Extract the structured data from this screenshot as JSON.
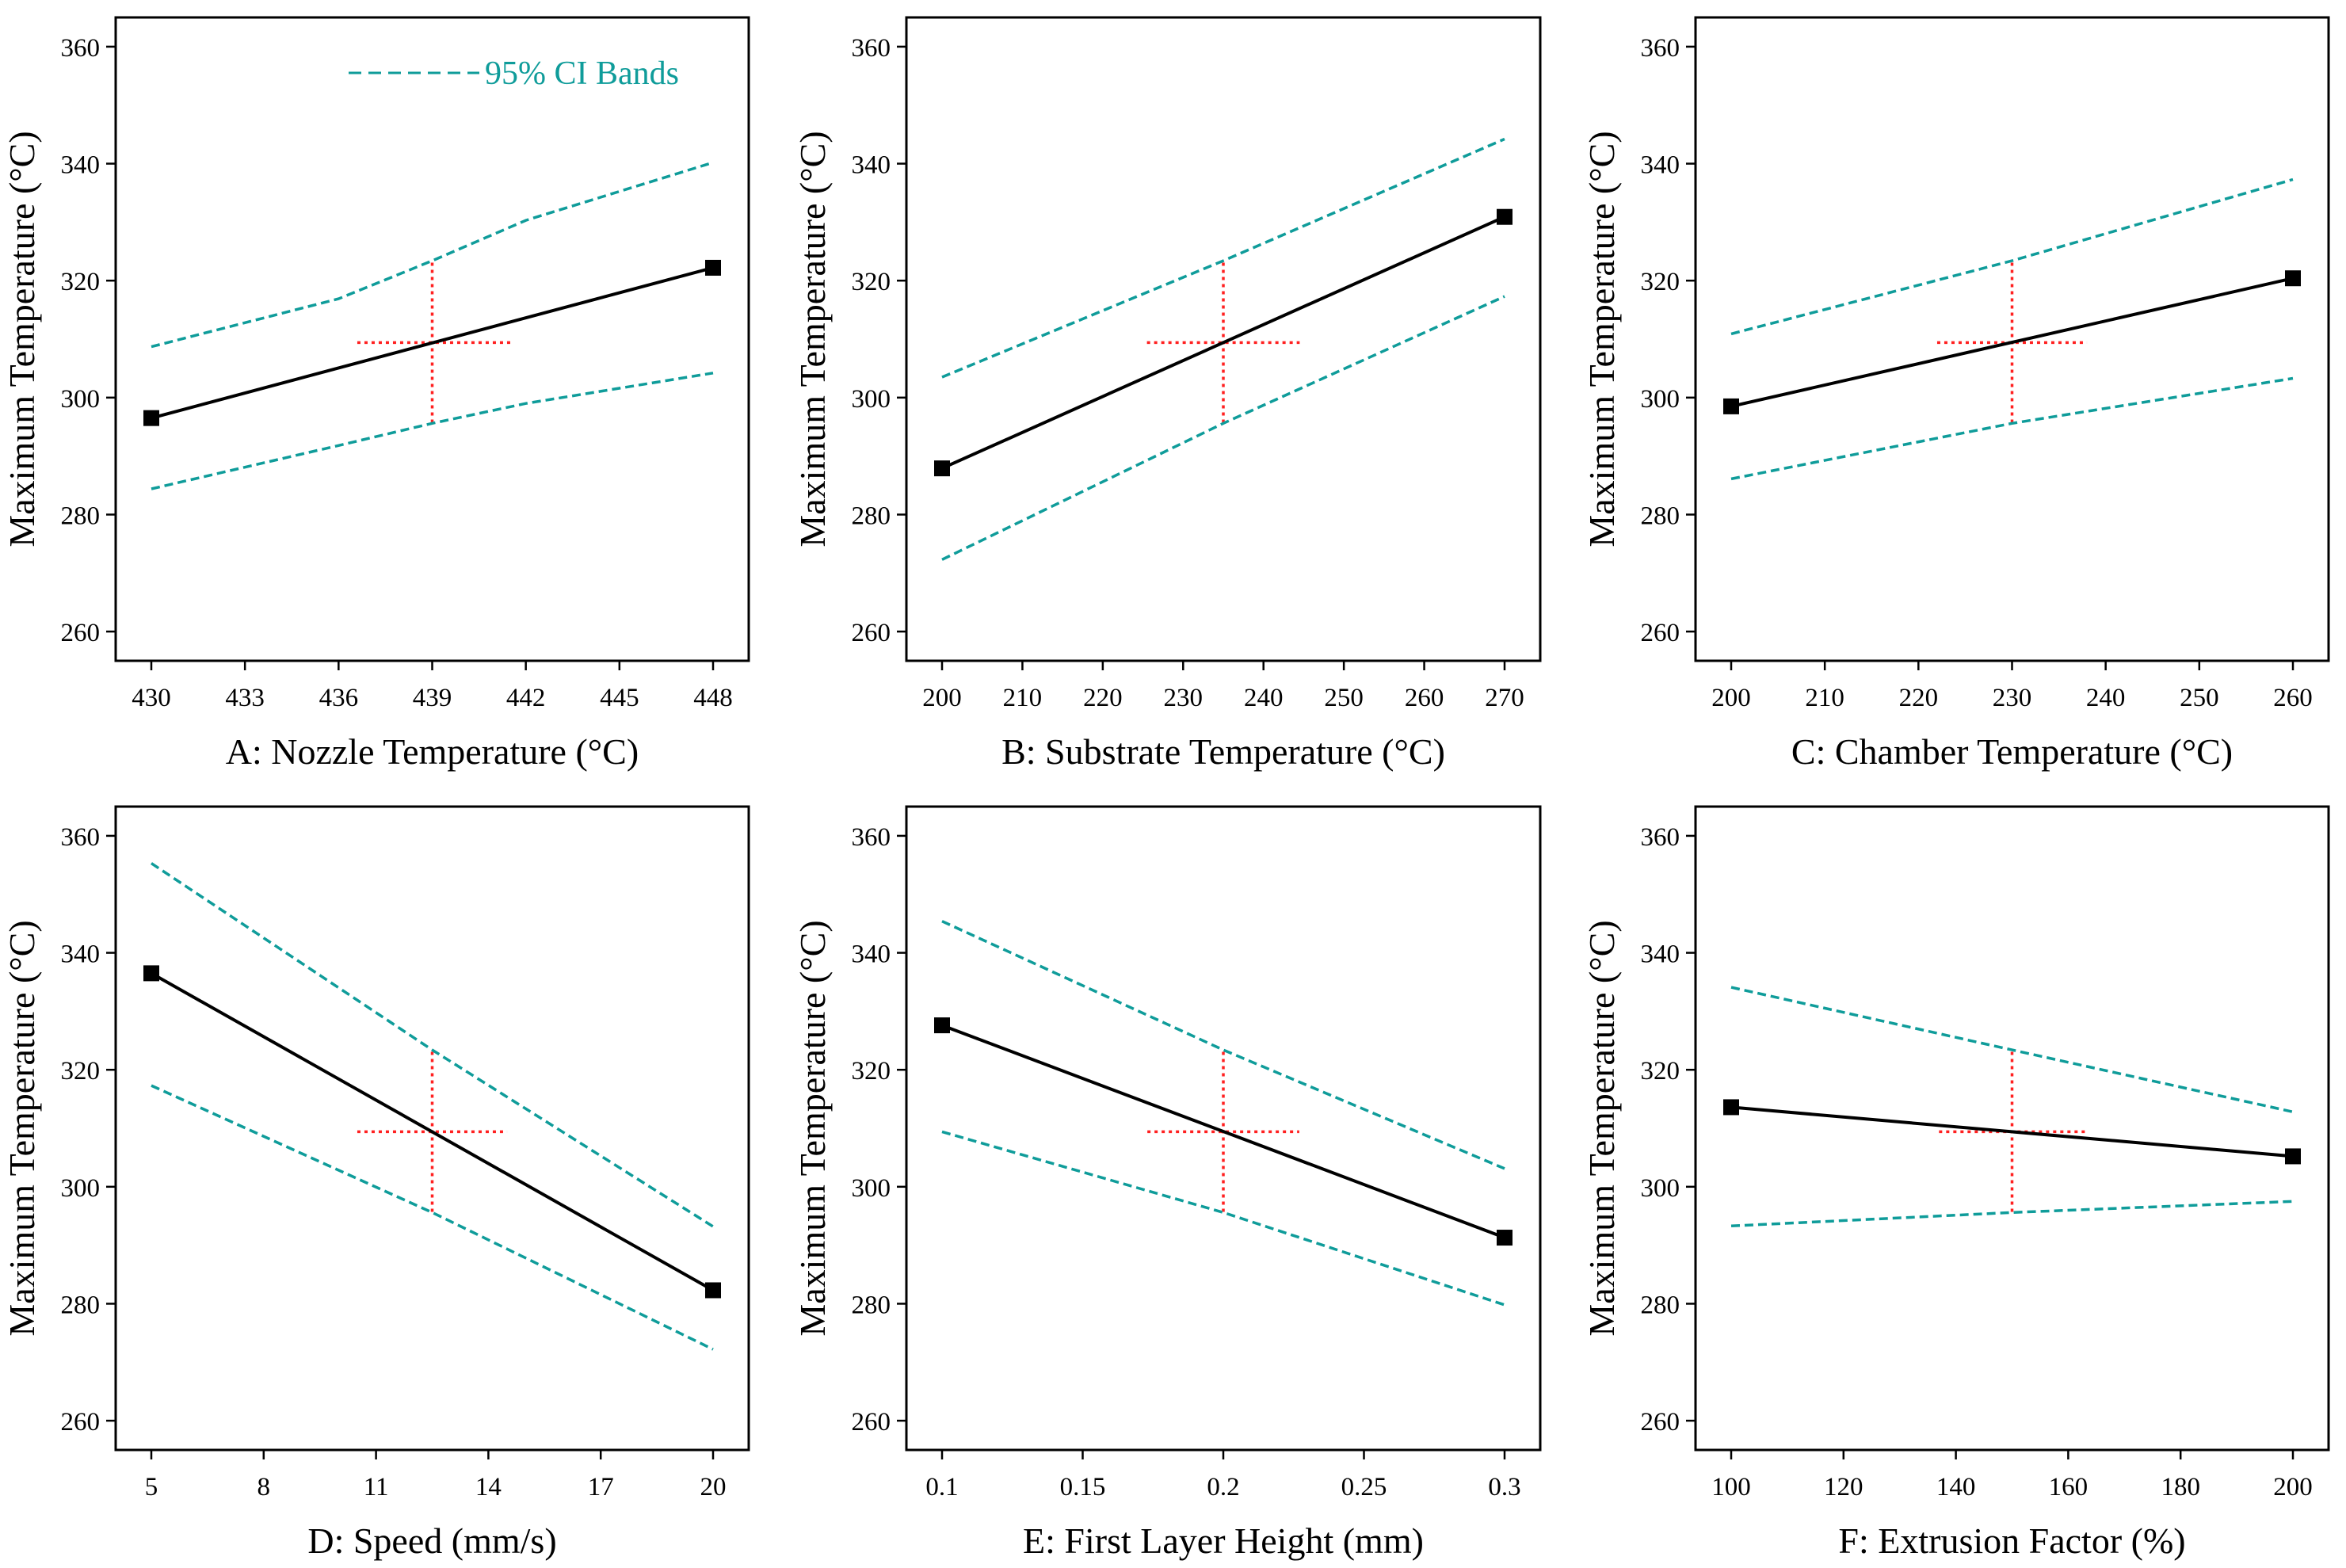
{
  "colors": {
    "mean": "#000000",
    "ci": "#0f9c9a",
    "center": "#ff2020",
    "frame": "#000000"
  },
  "legend": {
    "label": "95% CI Bands",
    "placement": "top-right of panel A"
  },
  "chart_data": [
    {
      "type": "line",
      "id": "A",
      "xlabel": "A: Nozzle Temperature (°C)",
      "ylabel": "Maximum Temperature (°C)",
      "xlim": [
        430,
        448
      ],
      "ylim": [
        255,
        365
      ],
      "xticks": [
        430,
        433,
        436,
        439,
        442,
        445,
        448
      ],
      "xtick_labels": [
        "430",
        "433",
        "436",
        "439",
        "442",
        "445",
        "448"
      ],
      "yticks": [
        260,
        280,
        300,
        320,
        340,
        360
      ],
      "ytick_labels": [
        "260",
        "280",
        "300",
        "320",
        "340",
        "360"
      ],
      "series": [
        {
          "name": "Mean",
          "x": [
            430,
            448
          ],
          "y": [
            296.5,
            322.2
          ]
        },
        {
          "name": "95% CI upper",
          "x": [
            430,
            436,
            439,
            442,
            448
          ],
          "y": [
            308.7,
            316.9,
            323.4,
            330.3,
            340.2
          ]
        },
        {
          "name": "95% CI lower",
          "x": [
            430,
            436,
            439,
            442,
            448
          ],
          "y": [
            284.4,
            291.8,
            295.6,
            299.0,
            304.2
          ]
        }
      ],
      "center_point": {
        "x": 439,
        "y": 309.4,
        "x_low": 436.6,
        "x_high": 441.5,
        "y_low": 295.7,
        "y_high": 323.4
      }
    },
    {
      "type": "line",
      "id": "B",
      "xlabel": "B: Substrate Temperature (°C)",
      "ylabel": "Maximum Temperature (°C)",
      "xlim": [
        200,
        270
      ],
      "ylim": [
        255,
        365
      ],
      "xticks": [
        200,
        210,
        220,
        230,
        240,
        250,
        260,
        270
      ],
      "xtick_labels": [
        "200",
        "210",
        "220",
        "230",
        "240",
        "250",
        "260",
        "270"
      ],
      "yticks": [
        260,
        280,
        300,
        320,
        340,
        360
      ],
      "ytick_labels": [
        "260",
        "280",
        "300",
        "320",
        "340",
        "360"
      ],
      "series": [
        {
          "name": "Mean",
          "x": [
            200,
            270
          ],
          "y": [
            287.9,
            330.9
          ]
        },
        {
          "name": "95% CI upper",
          "x": [
            200,
            235,
            270
          ],
          "y": [
            303.5,
            323.4,
            344.2
          ]
        },
        {
          "name": "95% CI lower",
          "x": [
            200,
            235,
            270
          ],
          "y": [
            272.3,
            295.6,
            317.3
          ]
        }
      ],
      "center_point": {
        "x": 235,
        "y": 309.4,
        "x_low": 225.5,
        "x_high": 244.5,
        "y_low": 295.7,
        "y_high": 323.4
      }
    },
    {
      "type": "line",
      "id": "C",
      "xlabel": "C: Chamber Temperature (°C)",
      "ylabel": "Maximum Temperature (°C)",
      "xlim": [
        200,
        260
      ],
      "ylim": [
        255,
        365
      ],
      "xticks": [
        200,
        210,
        220,
        230,
        240,
        250,
        260
      ],
      "xtick_labels": [
        "200",
        "210",
        "220",
        "230",
        "240",
        "250",
        "260"
      ],
      "yticks": [
        260,
        280,
        300,
        320,
        340,
        360
      ],
      "ytick_labels": [
        "260",
        "280",
        "300",
        "320",
        "340",
        "360"
      ],
      "series": [
        {
          "name": "Mean",
          "x": [
            200,
            260
          ],
          "y": [
            298.5,
            320.4
          ]
        },
        {
          "name": "95% CI upper",
          "x": [
            200,
            230,
            260
          ],
          "y": [
            310.9,
            323.4,
            337.3
          ]
        },
        {
          "name": "95% CI lower",
          "x": [
            200,
            230,
            260
          ],
          "y": [
            286.1,
            295.6,
            303.3
          ]
        }
      ],
      "center_point": {
        "x": 230,
        "y": 309.4,
        "x_low": 222,
        "x_high": 238,
        "y_low": 295.7,
        "y_high": 323.4
      }
    },
    {
      "type": "line",
      "id": "D",
      "xlabel": "D: Speed (mm/s)",
      "ylabel": "Maximum Temperature (°C)",
      "xlim": [
        5,
        20
      ],
      "ylim": [
        255,
        365
      ],
      "xticks": [
        5,
        8,
        11,
        14,
        17,
        20
      ],
      "xtick_labels": [
        "5",
        "8",
        "11",
        "14",
        "17",
        "20"
      ],
      "yticks": [
        260,
        280,
        300,
        320,
        340,
        360
      ],
      "ytick_labels": [
        "260",
        "280",
        "300",
        "320",
        "340",
        "360"
      ],
      "series": [
        {
          "name": "Mean",
          "x": [
            5,
            20
          ],
          "y": [
            336.5,
            282.3
          ]
        },
        {
          "name": "95% CI upper",
          "x": [
            5,
            12.5,
            20
          ],
          "y": [
            355.3,
            323.4,
            293.2
          ]
        },
        {
          "name": "95% CI lower",
          "x": [
            5,
            12.5,
            20
          ],
          "y": [
            317.3,
            295.6,
            272.2
          ]
        }
      ],
      "center_point": {
        "x": 12.5,
        "y": 309.4,
        "x_low": 10.5,
        "x_high": 14.5,
        "y_low": 295.7,
        "y_high": 323.4
      }
    },
    {
      "type": "line",
      "id": "E",
      "xlabel": "E: First Layer Height (mm)",
      "ylabel": "Maximum Temperature (°C)",
      "xlim": [
        0.1,
        0.3
      ],
      "ylim": [
        255,
        365
      ],
      "xticks": [
        0.1,
        0.15,
        0.2,
        0.25,
        0.3
      ],
      "xtick_labels": [
        "0.1",
        "0.15",
        "0.2",
        "0.25",
        "0.3"
      ],
      "yticks": [
        260,
        280,
        300,
        320,
        340,
        360
      ],
      "ytick_labels": [
        "260",
        "280",
        "300",
        "320",
        "340",
        "360"
      ],
      "series": [
        {
          "name": "Mean",
          "x": [
            0.1,
            0.3
          ],
          "y": [
            327.6,
            291.3
          ]
        },
        {
          "name": "95% CI upper",
          "x": [
            0.1,
            0.2,
            0.3
          ],
          "y": [
            345.4,
            323.4,
            303.1
          ]
        },
        {
          "name": "95% CI lower",
          "x": [
            0.1,
            0.2,
            0.3
          ],
          "y": [
            309.4,
            295.6,
            279.8
          ]
        }
      ],
      "center_point": {
        "x": 0.2,
        "y": 309.4,
        "x_low": 0.173,
        "x_high": 0.227,
        "y_low": 295.7,
        "y_high": 323.4
      }
    },
    {
      "type": "line",
      "id": "F",
      "xlabel": "F: Extrusion Factor (%)",
      "ylabel": "Maximum Temperature (°C)",
      "xlim": [
        100,
        200
      ],
      "ylim": [
        255,
        365
      ],
      "xticks": [
        100,
        120,
        140,
        160,
        180,
        200
      ],
      "xtick_labels": [
        "100",
        "120",
        "140",
        "160",
        "180",
        "200"
      ],
      "yticks": [
        260,
        280,
        300,
        320,
        340,
        360
      ],
      "ytick_labels": [
        "260",
        "280",
        "300",
        "320",
        "340",
        "360"
      ],
      "series": [
        {
          "name": "Mean",
          "x": [
            100,
            200
          ],
          "y": [
            313.6,
            305.2
          ]
        },
        {
          "name": "95% CI upper",
          "x": [
            100,
            150,
            200
          ],
          "y": [
            334.1,
            323.4,
            312.8
          ]
        },
        {
          "name": "95% CI lower",
          "x": [
            100,
            150,
            200
          ],
          "y": [
            293.3,
            295.6,
            297.5
          ]
        }
      ],
      "center_point": {
        "x": 150,
        "y": 309.4,
        "x_low": 137,
        "x_high": 163,
        "y_low": 295.7,
        "y_high": 323.4
      }
    }
  ]
}
